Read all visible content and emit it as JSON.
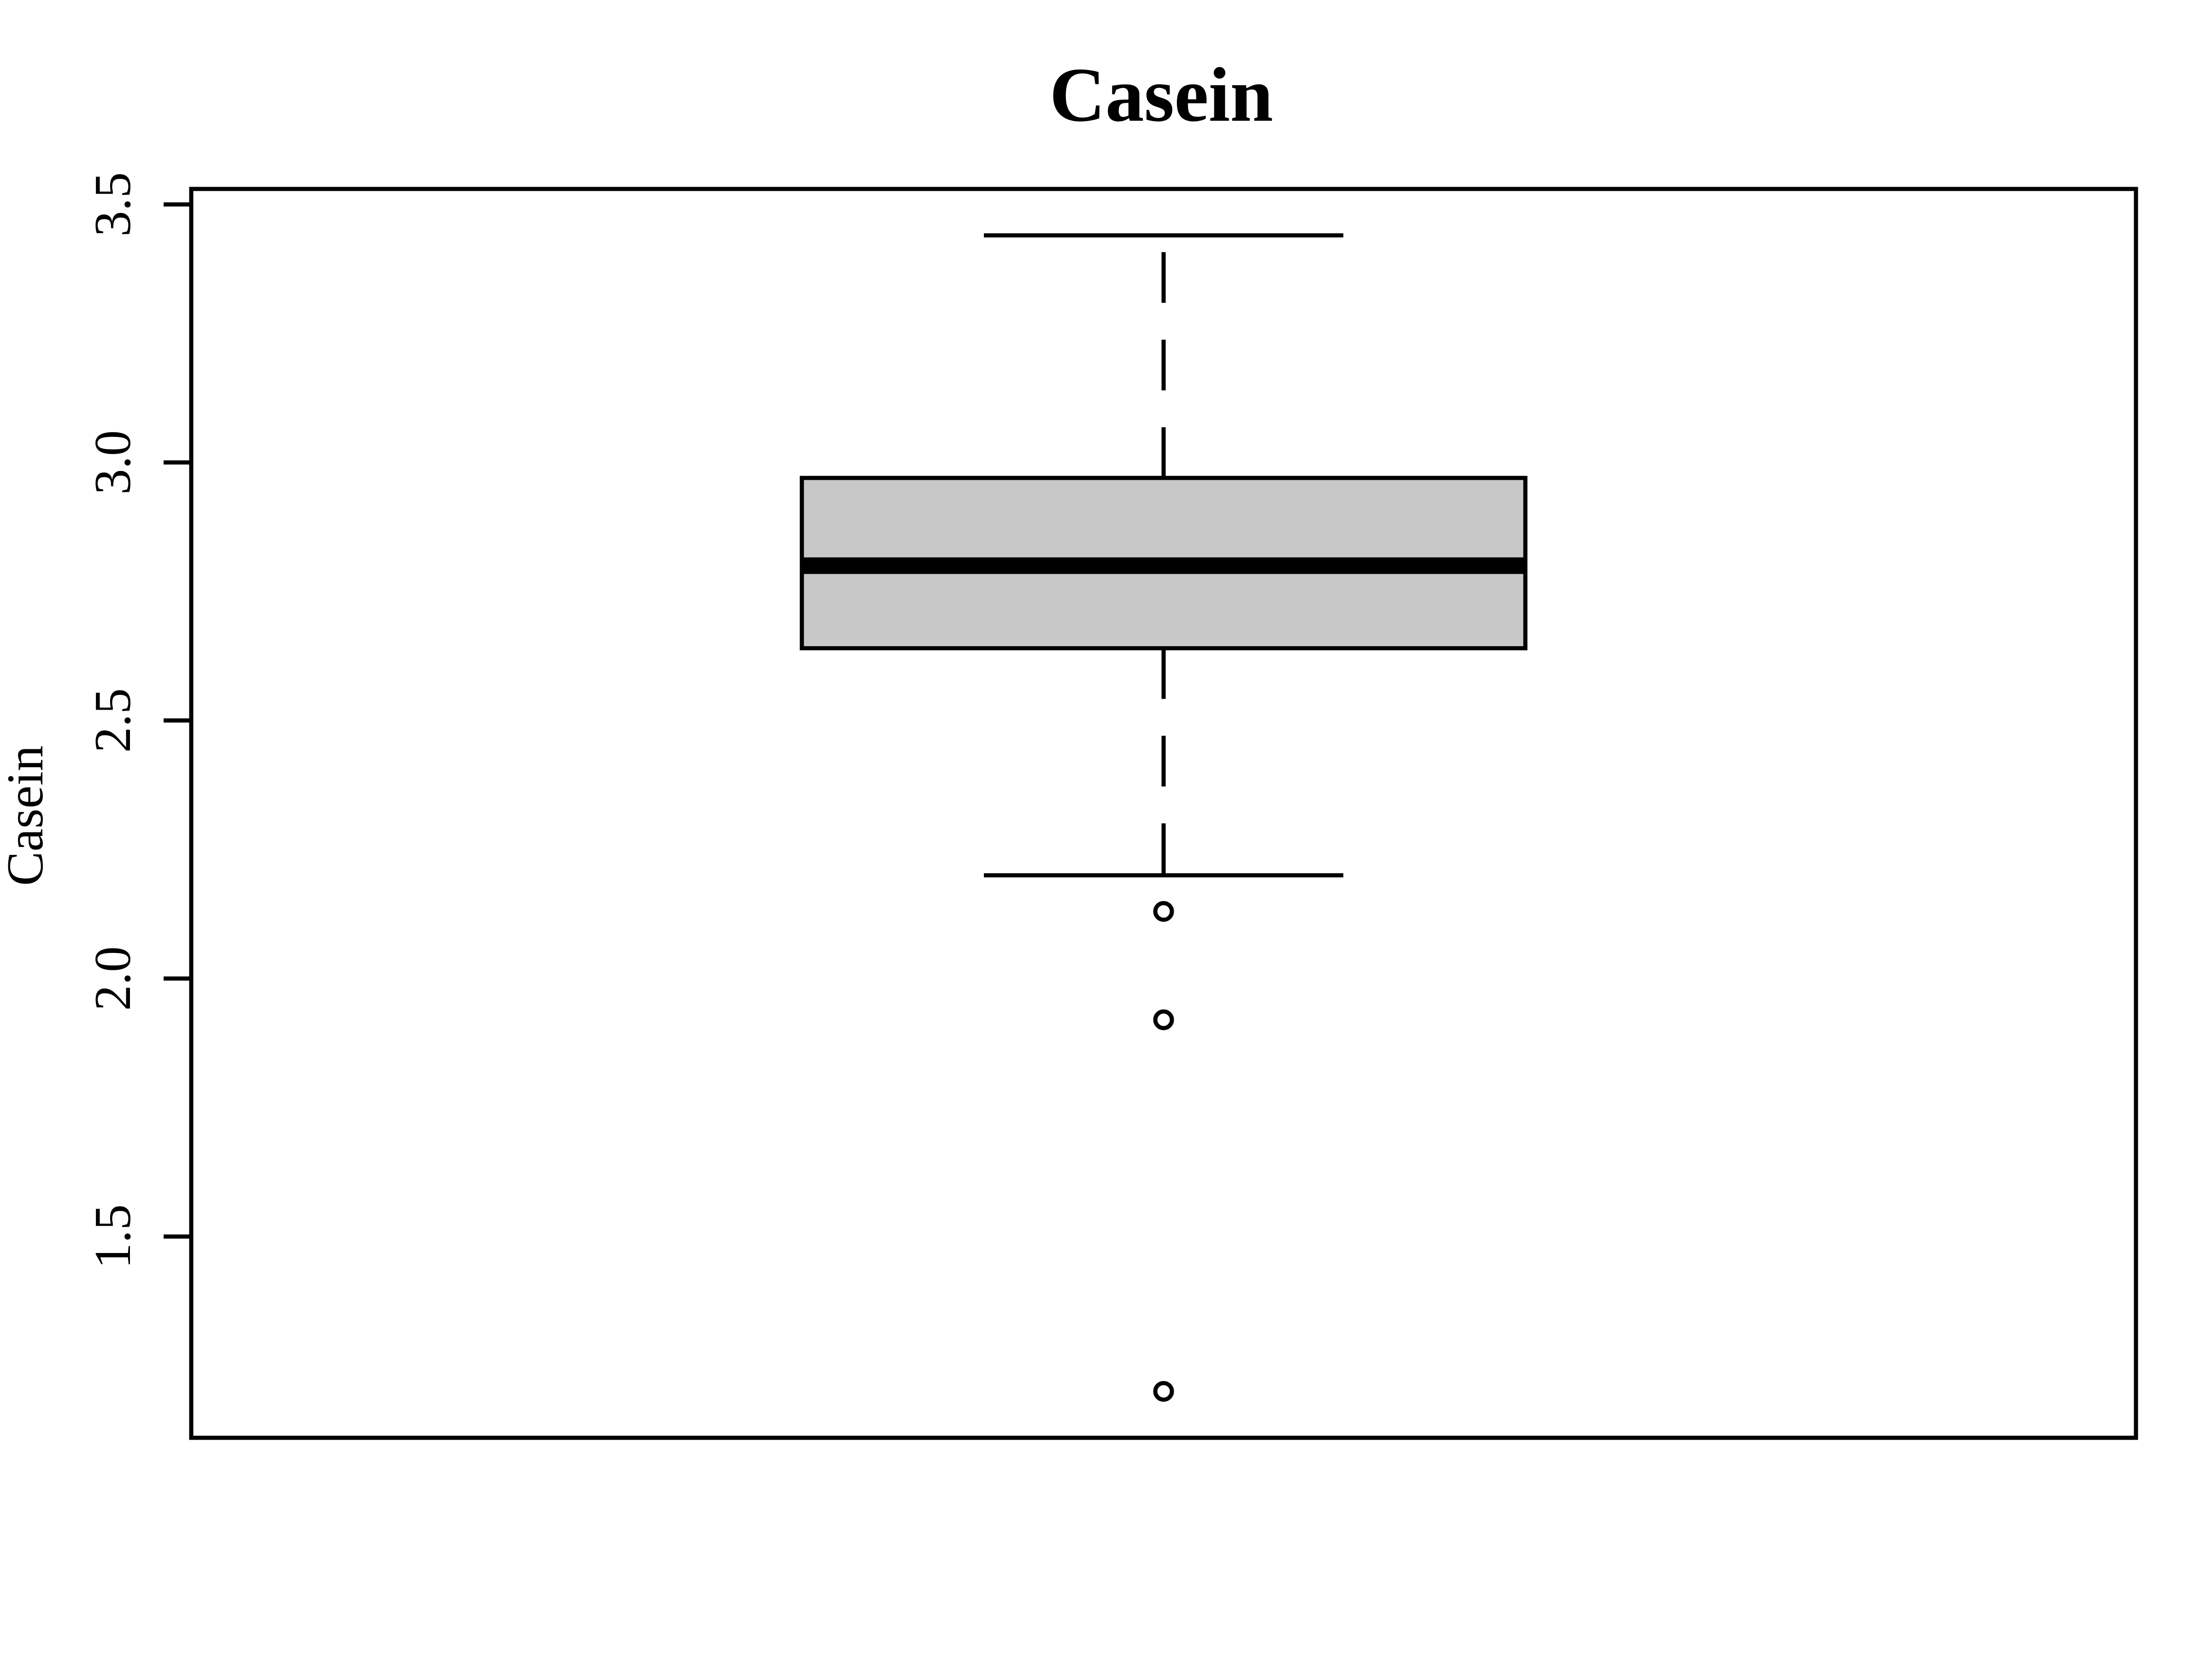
{
  "chart_data": {
    "type": "boxplot",
    "title": "Casein",
    "ylabel": "Casein",
    "xlabel": "",
    "ylim": [
      1.11,
      3.53
    ],
    "yticks": [
      1.5,
      2.0,
      2.5,
      3.0,
      3.5
    ],
    "ytick_labels": [
      "1.5",
      "2.0",
      "2.5",
      "3.0",
      "3.5"
    ],
    "grid": false,
    "box": {
      "whisker_low": 2.2,
      "q1": 2.64,
      "median": 2.8,
      "q3": 2.97,
      "whisker_high": 3.44,
      "outliers": [
        2.13,
        1.92,
        1.2
      ]
    },
    "colors": {
      "box_fill": "#c8c8c8",
      "stroke": "#000000"
    }
  }
}
